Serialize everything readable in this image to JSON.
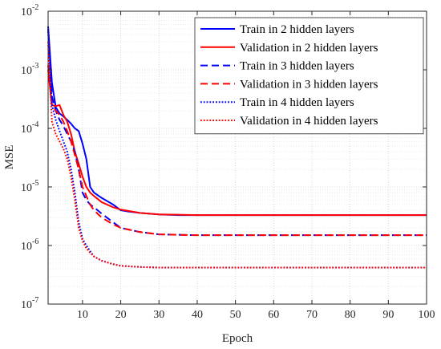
{
  "chart_data": {
    "type": "line",
    "xlabel": "Epoch",
    "ylabel": "MSE",
    "xlim": [
      1,
      100
    ],
    "ylim": [
      1e-07,
      0.01
    ],
    "yscale": "log",
    "grid": true,
    "minor_grid": true,
    "legend_position": "top-right",
    "x_ticks": [
      10,
      20,
      30,
      40,
      50,
      60,
      70,
      80,
      90,
      100
    ],
    "x_tick_labels": [
      "10",
      "20",
      "30",
      "40",
      "50",
      "60",
      "70",
      "80",
      "90",
      "100"
    ],
    "y_ticks": [
      1e-07,
      1e-06,
      1e-05,
      0.0001,
      0.001,
      0.01
    ],
    "y_tick_labels": [
      {
        "base": "10",
        "exp": "-7"
      },
      {
        "base": "10",
        "exp": "-6"
      },
      {
        "base": "10",
        "exp": "-5"
      },
      {
        "base": "10",
        "exp": "-4"
      },
      {
        "base": "10",
        "exp": "-3"
      },
      {
        "base": "10",
        "exp": "-2"
      }
    ],
    "series": [
      {
        "name": "Train in 2 hidden layers",
        "color": "#0000ff",
        "style": "solid",
        "x": [
          1,
          2,
          3,
          4,
          5,
          6,
          7,
          8,
          9,
          10,
          11,
          12,
          13,
          15,
          18,
          20,
          22,
          25,
          30,
          35,
          40,
          50,
          60,
          70,
          80,
          90,
          100
        ],
        "y": [
          0.0055,
          0.0006,
          0.00023,
          0.00018,
          0.00016,
          0.00014,
          0.00012,
          0.0001,
          9e-05,
          5.5e-05,
          3e-05,
          1e-05,
          8e-06,
          6.5e-06,
          5e-06,
          4e-06,
          3.8e-06,
          3.6e-06,
          3.4e-06,
          3.3e-06,
          3.3e-06,
          3.3e-06,
          3.3e-06,
          3.3e-06,
          3.3e-06,
          3.3e-06,
          3.3e-06
        ]
      },
      {
        "name": "Validation in 2 hidden layers",
        "color": "#ff0000",
        "style": "solid",
        "x": [
          1,
          2,
          3,
          4,
          5,
          6,
          7,
          8,
          9,
          10,
          11,
          12,
          13,
          15,
          18,
          20,
          22,
          25,
          30,
          35,
          40,
          50,
          60,
          70,
          80,
          90,
          100
        ],
        "y": [
          0.001,
          0.00025,
          0.00024,
          0.00025,
          0.00017,
          0.00013,
          8e-05,
          4e-05,
          2.5e-05,
          1.5e-05,
          1e-05,
          8e-06,
          7e-06,
          5.5e-06,
          4.5e-06,
          4.1e-06,
          3.9e-06,
          3.6e-06,
          3.4e-06,
          3.35e-06,
          3.3e-06,
          3.3e-06,
          3.3e-06,
          3.3e-06,
          3.3e-06,
          3.3e-06,
          3.3e-06
        ]
      },
      {
        "name": "Train in 3 hidden layers",
        "color": "#0000ff",
        "style": "dash",
        "x": [
          1,
          2,
          3,
          4,
          5,
          6,
          7,
          8,
          9,
          10,
          11,
          12,
          13,
          15,
          18,
          20,
          25,
          30,
          40,
          50,
          60,
          70,
          80,
          90,
          100
        ],
        "y": [
          0.005,
          0.00035,
          0.0002,
          0.00014,
          0.00011,
          8e-05,
          6e-05,
          4e-05,
          2e-05,
          8e-06,
          6e-06,
          5e-06,
          4.5e-06,
          3.5e-06,
          2.5e-06,
          2e-06,
          1.7e-06,
          1.55e-06,
          1.5e-06,
          1.5e-06,
          1.5e-06,
          1.5e-06,
          1.5e-06,
          1.5e-06,
          1.5e-06
        ]
      },
      {
        "name": "Validation in 3 hidden layers",
        "color": "#ff0000",
        "style": "dash",
        "x": [
          1,
          2,
          3,
          4,
          5,
          6,
          7,
          8,
          9,
          10,
          11,
          12,
          13,
          15,
          18,
          20,
          25,
          30,
          40,
          50,
          60,
          70,
          80,
          90,
          100
        ],
        "y": [
          0.0012,
          0.00025,
          0.0002,
          0.00017,
          0.00013,
          9e-05,
          6e-05,
          3.5e-05,
          2e-05,
          1e-05,
          7e-06,
          5e-06,
          4e-06,
          3e-06,
          2.3e-06,
          2e-06,
          1.7e-06,
          1.55e-06,
          1.5e-06,
          1.5e-06,
          1.5e-06,
          1.5e-06,
          1.5e-06,
          1.5e-06,
          1.5e-06
        ]
      },
      {
        "name": "Train in 4 hidden layers",
        "color": "#0000ff",
        "style": "dot",
        "x": [
          1,
          2,
          3,
          4,
          5,
          6,
          7,
          8,
          9,
          10,
          11,
          12,
          13,
          15,
          18,
          20,
          25,
          30,
          40,
          50,
          60,
          70,
          80,
          90,
          100
        ],
        "y": [
          0.0045,
          0.00025,
          0.00014,
          9e-05,
          6e-05,
          4e-05,
          2e-05,
          8e-06,
          2.5e-06,
          1.3e-06,
          1e-06,
          8e-07,
          6.5e-07,
          5.5e-07,
          4.8e-07,
          4.5e-07,
          4.3e-07,
          4.2e-07,
          4.2e-07,
          4.2e-07,
          4.2e-07,
          4.2e-07,
          4.2e-07,
          4.2e-07,
          4.2e-07
        ]
      },
      {
        "name": "Validation in 4 hidden layers",
        "color": "#ff0000",
        "style": "dot",
        "x": [
          1,
          2,
          3,
          4,
          5,
          6,
          7,
          8,
          9,
          10,
          11,
          12,
          13,
          15,
          18,
          20,
          25,
          30,
          40,
          50,
          60,
          70,
          80,
          90,
          100
        ],
        "y": [
          0.003,
          0.00013,
          8e-05,
          6e-05,
          4.5e-05,
          3e-05,
          1.5e-05,
          6e-06,
          2e-06,
          1.2e-06,
          9e-07,
          7.5e-07,
          6.5e-07,
          5.5e-07,
          4.8e-07,
          4.5e-07,
          4.3e-07,
          4.2e-07,
          4.2e-07,
          4.2e-07,
          4.2e-07,
          4.2e-07,
          4.2e-07,
          4.2e-07,
          4.2e-07
        ]
      }
    ]
  }
}
